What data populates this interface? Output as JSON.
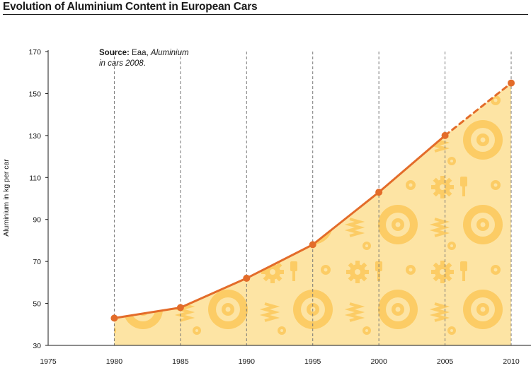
{
  "title": "Evolution of Aluminium Content in European Cars",
  "source": {
    "label": "Source:",
    "text": "Eaa,",
    "italic_line1": "Aluminium",
    "italic_line2": "in cars 2008",
    "trailing": "."
  },
  "colors": {
    "line": "#e36c2a",
    "area": "#fde4a4",
    "pattern": "#fcc85a",
    "grid": "#777777"
  },
  "chart_data": {
    "type": "line",
    "title": "Evolution of Aluminium Content in European Cars",
    "xlabel": "",
    "ylabel": "Aluminium in kg per car",
    "x_ticks": [
      1975,
      1980,
      1985,
      1990,
      1995,
      2000,
      2005,
      2010
    ],
    "y_ticks": [
      30,
      50,
      70,
      90,
      110,
      130,
      150,
      170
    ],
    "xlim": [
      1975,
      2010
    ],
    "ylim": [
      30,
      170
    ],
    "grid": "vertical dashed at data years",
    "series": [
      {
        "x": [
          1980,
          1985,
          1990,
          1995,
          2000,
          2005,
          2010
        ],
        "values": [
          43,
          48,
          62,
          78,
          103,
          130,
          155
        ],
        "dashed_segment": [
          2005,
          2010
        ]
      }
    ]
  }
}
